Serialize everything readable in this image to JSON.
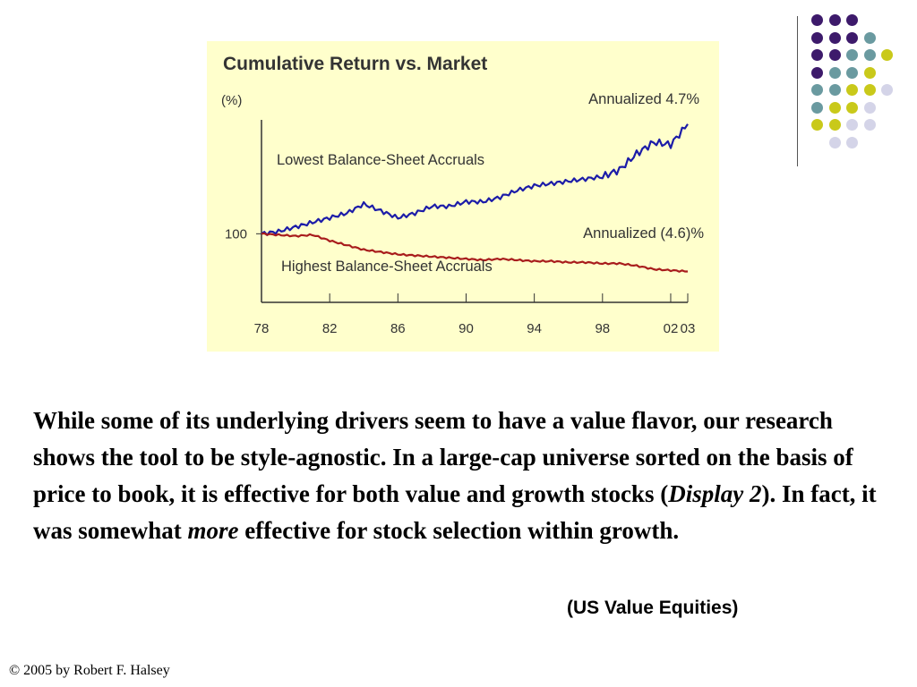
{
  "body": {
    "part1": "While some of its underlying drivers seem to have a value flavor, our research shows the tool to be style-agnostic. In a large-cap universe sorted on the basis of price to book, it is effective for both value and growth stocks (",
    "display_ref": "Display 2",
    "part2": "). In fact, it was somewhat ",
    "emphasis": "more",
    "part3": " effective for stock selection within growth."
  },
  "source": "(US Value Equities)",
  "footer": "© 2005 by Robert F. Halsey",
  "colors": {
    "chart_background": "#ffffcc",
    "lowest_series": "#1c1ca8",
    "highest_series": "#a81c1c",
    "dot_purple": "#3d1a6b",
    "dot_teal": "#6a9aa0",
    "dot_yellow": "#c9c91a",
    "dot_lavender": "#d4d4e8"
  },
  "decor": {
    "dot_rows": [
      [
        "purple",
        "purple",
        "purple"
      ],
      [
        "purple",
        "purple",
        "purple",
        "teal"
      ],
      [
        "purple",
        "purple",
        "teal",
        "teal",
        "yellow"
      ],
      [
        "purple",
        "teal",
        "teal",
        "yellow"
      ],
      [
        "teal",
        "teal",
        "yellow",
        "yellow",
        "lavender"
      ],
      [
        "teal",
        "yellow",
        "yellow",
        "lavender"
      ],
      [
        "yellow",
        "yellow",
        "lavender",
        "lavender"
      ],
      [
        "lavender",
        "lavender"
      ]
    ]
  },
  "chart_data": {
    "type": "line",
    "title": "Cumulative Return vs. Market",
    "ylabel": "(%)",
    "xlabel": "",
    "x_ticks": [
      "78",
      "82",
      "86",
      "90",
      "94",
      "98",
      "02",
      "03"
    ],
    "x_tick_years": [
      1978,
      1982,
      1986,
      1990,
      1994,
      1998,
      2002,
      2003
    ],
    "y_ticks": [
      100
    ],
    "xlim": [
      1978,
      2003
    ],
    "ylim": [
      70,
      160
    ],
    "grid": false,
    "series": [
      {
        "name": "Lowest Balance-Sheet Accruals",
        "color": "#1c1ca8",
        "end_label": "Annualized 4.7%",
        "x": [
          1978,
          1979,
          1980,
          1981,
          1982,
          1983,
          1984,
          1985,
          1986,
          1987,
          1988,
          1989,
          1990,
          1991,
          1992,
          1993,
          1994,
          1995,
          1996,
          1997,
          1998,
          1999,
          2000,
          2001,
          2002,
          2003
        ],
        "y": [
          100,
          101,
          103,
          105,
          107,
          109,
          113,
          110,
          107,
          109,
          112,
          112,
          114,
          114,
          116,
          119,
          121,
          122,
          123,
          124,
          125,
          128,
          135,
          140,
          139,
          148
        ]
      },
      {
        "name": "Highest Balance-Sheet Accruals",
        "color": "#a81c1c",
        "end_label": "Annualized (4.6)%",
        "x": [
          1978,
          1979,
          1980,
          1981,
          1982,
          1983,
          1984,
          1985,
          1986,
          1987,
          1988,
          1989,
          1990,
          1991,
          1992,
          1993,
          1994,
          1995,
          1996,
          1997,
          1998,
          1999,
          2000,
          2001,
          2002,
          2003
        ],
        "y": [
          100,
          99.5,
          99,
          99.5,
          97,
          95,
          93,
          92,
          91,
          90.5,
          90,
          89.5,
          89,
          88.5,
          89,
          88.5,
          88,
          88,
          87.5,
          87.5,
          87,
          87,
          86,
          84.5,
          84,
          83.5
        ]
      }
    ]
  }
}
